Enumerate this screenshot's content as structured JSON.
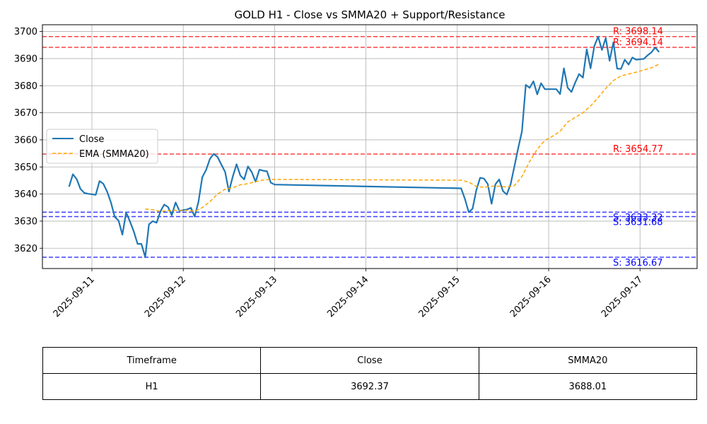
{
  "chart_data": {
    "type": "line",
    "title": "GOLD H1 - Close vs SMMA20 + Support/Resistance",
    "xlabel": "",
    "ylabel": "",
    "x_tick_labels": [
      "2025-09-11",
      "2025-09-12",
      "2025-09-13",
      "2025-09-14",
      "2025-09-15",
      "2025-09-16",
      "2025-09-17"
    ],
    "y_ticks": [
      3620,
      3630,
      3640,
      3650,
      3660,
      3670,
      3680,
      3690,
      3700
    ],
    "ylim": [
      3612.5,
      3702.5
    ],
    "xlim": [
      "2025-09-10T11:00",
      "2025-09-17T15:00"
    ],
    "grid": true,
    "legend_position": "center-left",
    "series": [
      {
        "name": "Close",
        "color": "#1f77b4",
        "style": "solid",
        "points": [
          [
            "2025-09-10T18:00",
            3642.7
          ],
          [
            "2025-09-10T19:00",
            3647.3
          ],
          [
            "2025-09-10T20:00",
            3645.5
          ],
          [
            "2025-09-10T21:00",
            3641.9
          ],
          [
            "2025-09-10T22:00",
            3640.4
          ],
          [
            "2025-09-10T23:00",
            3640.1
          ],
          [
            "2025-09-11T01:00",
            3639.7
          ],
          [
            "2025-09-11T02:00",
            3644.8
          ],
          [
            "2025-09-11T03:00",
            3643.8
          ],
          [
            "2025-09-11T04:00",
            3640.9
          ],
          [
            "2025-09-11T05:00",
            3636.9
          ],
          [
            "2025-09-11T06:00",
            3631.6
          ],
          [
            "2025-09-11T07:00",
            3630.2
          ],
          [
            "2025-09-11T08:00",
            3625.0
          ],
          [
            "2025-09-11T09:00",
            3633.2
          ],
          [
            "2025-09-11T10:00",
            3629.9
          ],
          [
            "2025-09-11T11:00",
            3626.2
          ],
          [
            "2025-09-11T12:00",
            3621.6
          ],
          [
            "2025-09-11T13:00",
            3621.6
          ],
          [
            "2025-09-11T14:00",
            3616.7
          ],
          [
            "2025-09-11T15:00",
            3628.8
          ],
          [
            "2025-09-11T16:00",
            3630.0
          ],
          [
            "2025-09-11T17:00",
            3629.4
          ],
          [
            "2025-09-11T18:00",
            3633.6
          ],
          [
            "2025-09-11T19:00",
            3636.1
          ],
          [
            "2025-09-11T20:00",
            3635.2
          ],
          [
            "2025-09-11T21:00",
            3632.2
          ],
          [
            "2025-09-11T22:00",
            3636.9
          ],
          [
            "2025-09-11T23:00",
            3633.8
          ],
          [
            "2025-09-12T01:00",
            3634.3
          ],
          [
            "2025-09-12T02:00",
            3634.9
          ],
          [
            "2025-09-12T03:00",
            3631.7
          ],
          [
            "2025-09-12T04:00",
            3637.1
          ],
          [
            "2025-09-12T05:00",
            3646.2
          ],
          [
            "2025-09-12T06:00",
            3648.9
          ],
          [
            "2025-09-12T07:00",
            3653.0
          ],
          [
            "2025-09-12T08:00",
            3654.8
          ],
          [
            "2025-09-12T09:00",
            3653.7
          ],
          [
            "2025-09-12T10:00",
            3650.9
          ],
          [
            "2025-09-12T11:00",
            3648.2
          ],
          [
            "2025-09-12T12:00",
            3640.9
          ],
          [
            "2025-09-12T13:00",
            3646.4
          ],
          [
            "2025-09-12T14:00",
            3651.0
          ],
          [
            "2025-09-12T15:00",
            3646.8
          ],
          [
            "2025-09-12T16:00",
            3645.4
          ],
          [
            "2025-09-12T17:00",
            3650.2
          ],
          [
            "2025-09-12T18:00",
            3648.1
          ],
          [
            "2025-09-12T19:00",
            3644.5
          ],
          [
            "2025-09-12T20:00",
            3649.0
          ],
          [
            "2025-09-12T21:00",
            3648.6
          ],
          [
            "2025-09-12T22:00",
            3648.4
          ],
          [
            "2025-09-12T23:00",
            3644.2
          ],
          [
            "2025-09-13T00:00",
            3643.5
          ],
          [
            "2025-09-15T01:00",
            3642.1
          ],
          [
            "2025-09-15T02:00",
            3638.2
          ],
          [
            "2025-09-15T03:00",
            3633.3
          ],
          [
            "2025-09-15T04:00",
            3634.6
          ],
          [
            "2025-09-15T05:00",
            3641.4
          ],
          [
            "2025-09-15T06:00",
            3646.0
          ],
          [
            "2025-09-15T07:00",
            3645.7
          ],
          [
            "2025-09-15T08:00",
            3643.7
          ],
          [
            "2025-09-15T09:00",
            3636.4
          ],
          [
            "2025-09-15T10:00",
            3643.6
          ],
          [
            "2025-09-15T11:00",
            3645.4
          ],
          [
            "2025-09-15T12:00",
            3641.1
          ],
          [
            "2025-09-15T13:00",
            3639.8
          ],
          [
            "2025-09-15T14:00",
            3643.6
          ],
          [
            "2025-09-15T15:00",
            3650.2
          ],
          [
            "2025-09-15T16:00",
            3657.0
          ],
          [
            "2025-09-15T17:00",
            3663.2
          ],
          [
            "2025-09-15T18:00",
            3680.3
          ],
          [
            "2025-09-15T19:00",
            3679.2
          ],
          [
            "2025-09-15T20:00",
            3681.6
          ],
          [
            "2025-09-15T21:00",
            3676.8
          ],
          [
            "2025-09-15T22:00",
            3680.9
          ],
          [
            "2025-09-15T23:00",
            3678.7
          ],
          [
            "2025-09-16T01:00",
            3678.7
          ],
          [
            "2025-09-16T02:00",
            3678.7
          ],
          [
            "2025-09-16T03:00",
            3676.9
          ],
          [
            "2025-09-16T04:00",
            3686.4
          ],
          [
            "2025-09-16T05:00",
            3679.2
          ],
          [
            "2025-09-16T06:00",
            3677.7
          ],
          [
            "2025-09-16T07:00",
            3681.2
          ],
          [
            "2025-09-16T08:00",
            3684.3
          ],
          [
            "2025-09-16T09:00",
            3683.0
          ],
          [
            "2025-09-16T10:00",
            3693.4
          ],
          [
            "2025-09-16T11:00",
            3686.4
          ],
          [
            "2025-09-16T12:00",
            3694.6
          ],
          [
            "2025-09-16T13:00",
            3698.1
          ],
          [
            "2025-09-16T14:00",
            3693.2
          ],
          [
            "2025-09-16T15:00",
            3697.6
          ],
          [
            "2025-09-16T16:00",
            3689.2
          ],
          [
            "2025-09-16T17:00",
            3696.0
          ],
          [
            "2025-09-16T18:00",
            3686.3
          ],
          [
            "2025-09-16T19:00",
            3686.2
          ],
          [
            "2025-09-16T20:00",
            3689.6
          ],
          [
            "2025-09-16T21:00",
            3687.8
          ],
          [
            "2025-09-16T22:00",
            3690.4
          ],
          [
            "2025-09-16T23:00",
            3689.6
          ],
          [
            "2025-09-17T01:00",
            3689.9
          ],
          [
            "2025-09-17T02:00",
            3691.2
          ],
          [
            "2025-09-17T03:00",
            3692.3
          ],
          [
            "2025-09-17T04:00",
            3694.1
          ],
          [
            "2025-09-17T05:00",
            3692.4
          ]
        ]
      },
      {
        "name": "EMA (SMMA20)",
        "color": "#ffa500",
        "style": "dashed",
        "points": [
          [
            "2025-09-11T14:00",
            3634.5
          ],
          [
            "2025-09-11T16:00",
            3634.2
          ],
          [
            "2025-09-11T18:00",
            3633.6
          ],
          [
            "2025-09-11T20:00",
            3633.8
          ],
          [
            "2025-09-11T22:00",
            3634.0
          ],
          [
            "2025-09-12T01:00",
            3634.0
          ],
          [
            "2025-09-12T03:00",
            3633.6
          ],
          [
            "2025-09-12T05:00",
            3635.0
          ],
          [
            "2025-09-12T07:00",
            3637.2
          ],
          [
            "2025-09-12T09:00",
            3640.0
          ],
          [
            "2025-09-12T11:00",
            3641.8
          ],
          [
            "2025-09-12T13:00",
            3642.3
          ],
          [
            "2025-09-12T15:00",
            3643.4
          ],
          [
            "2025-09-12T17:00",
            3643.8
          ],
          [
            "2025-09-12T19:00",
            3644.6
          ],
          [
            "2025-09-12T21:00",
            3645.2
          ],
          [
            "2025-09-12T23:00",
            3645.4
          ],
          [
            "2025-09-13T00:00",
            3645.4
          ],
          [
            "2025-09-15T01:00",
            3645.1
          ],
          [
            "2025-09-15T03:00",
            3644.4
          ],
          [
            "2025-09-15T05:00",
            3642.8
          ],
          [
            "2025-09-15T07:00",
            3642.5
          ],
          [
            "2025-09-15T09:00",
            3642.9
          ],
          [
            "2025-09-15T11:00",
            3642.9
          ],
          [
            "2025-09-15T13:00",
            3642.6
          ],
          [
            "2025-09-15T15:00",
            3643.1
          ],
          [
            "2025-09-15T17:00",
            3646.5
          ],
          [
            "2025-09-15T19:00",
            3652.0
          ],
          [
            "2025-09-15T21:00",
            3656.6
          ],
          [
            "2025-09-15T23:00",
            3659.8
          ],
          [
            "2025-09-16T01:00",
            3661.3
          ],
          [
            "2025-09-16T03:00",
            3663.2
          ],
          [
            "2025-09-16T05:00",
            3666.6
          ],
          [
            "2025-09-16T07:00",
            3668.3
          ],
          [
            "2025-09-16T09:00",
            3670.0
          ],
          [
            "2025-09-16T11:00",
            3672.5
          ],
          [
            "2025-09-16T13:00",
            3675.6
          ],
          [
            "2025-09-16T15:00",
            3679.0
          ],
          [
            "2025-09-16T17:00",
            3681.9
          ],
          [
            "2025-09-16T19:00",
            3683.6
          ],
          [
            "2025-09-16T21:00",
            3684.3
          ],
          [
            "2025-09-16T23:00",
            3685.0
          ],
          [
            "2025-09-17T01:00",
            3685.8
          ],
          [
            "2025-09-17T03:00",
            3686.6
          ],
          [
            "2025-09-17T05:00",
            3688.0
          ]
        ]
      }
    ],
    "levels": [
      {
        "label": "R: 3698.14",
        "value": 3698.14,
        "color": "#ff0000"
      },
      {
        "label": "R: 3694.14",
        "value": 3694.14,
        "color": "#ff0000"
      },
      {
        "label": "R: 3654.77",
        "value": 3654.77,
        "color": "#ff0000"
      },
      {
        "label": "S: 3633.32",
        "value": 3633.32,
        "color": "#0000ff"
      },
      {
        "label": "S: 3631.68",
        "value": 3631.68,
        "color": "#0000ff"
      },
      {
        "label": "S: 3616.67",
        "value": 3616.67,
        "color": "#0000ff"
      }
    ]
  },
  "table": {
    "headers": [
      "Timeframe",
      "Close",
      "SMMA20"
    ],
    "row": [
      "H1",
      "3692.37",
      "3688.01"
    ]
  }
}
